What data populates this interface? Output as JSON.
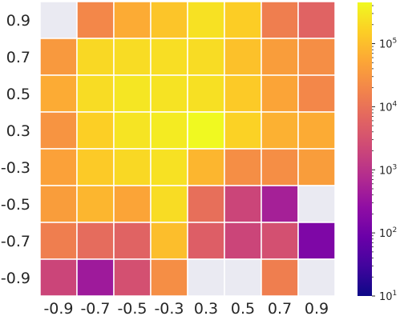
{
  "chart_data": {
    "type": "heatmap",
    "title": "",
    "xlabel": "",
    "ylabel": "",
    "x_categories": [
      "-0.9",
      "-0.7",
      "-0.5",
      "-0.3",
      "0.3",
      "0.5",
      "0.7",
      "0.9"
    ],
    "y_categories": [
      "0.9",
      "0.7",
      "0.5",
      "0.3",
      "-0.3",
      "-0.5",
      "-0.7",
      "-0.9"
    ],
    "values": [
      [
        null,
        20000,
        60000,
        120000,
        250000,
        150000,
        15000,
        6000
      ],
      [
        35000,
        200000,
        220000,
        230000,
        220000,
        110000,
        40000,
        25000
      ],
      [
        60000,
        220000,
        280000,
        260000,
        240000,
        140000,
        50000,
        20000
      ],
      [
        30000,
        160000,
        270000,
        320000,
        450000,
        170000,
        70000,
        60000
      ],
      [
        45000,
        140000,
        200000,
        250000,
        80000,
        25000,
        25000,
        40000
      ],
      [
        40000,
        80000,
        50000,
        220000,
        9000,
        2000,
        500,
        null
      ],
      [
        15000,
        8000,
        6000,
        100000,
        5000,
        2000,
        3000,
        150
      ],
      [
        2000,
        400,
        3000,
        25000,
        null,
        null,
        15000,
        null
      ]
    ],
    "missing_color": "#eaeaf2",
    "colorscale": "plasma",
    "color_scale_type": "log",
    "color_range": [
      10,
      450000
    ],
    "colorbar_ticks": [
      {
        "value": 10,
        "base": "10",
        "exp": "1"
      },
      {
        "value": 100,
        "base": "10",
        "exp": "2"
      },
      {
        "value": 1000,
        "base": "10",
        "exp": "3"
      },
      {
        "value": 10000,
        "base": "10",
        "exp": "4"
      },
      {
        "value": 100000,
        "base": "10",
        "exp": "5"
      }
    ],
    "grid": true
  }
}
